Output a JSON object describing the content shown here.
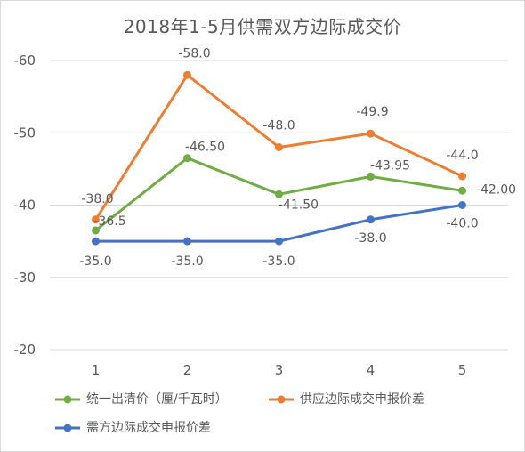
{
  "chart_data": {
    "type": "line",
    "title": "2018年1-5月供需双方边际成交价",
    "xlabel": "",
    "ylabel": "",
    "categories": [
      "1",
      "2",
      "3",
      "4",
      "5"
    ],
    "ylim": [
      -20,
      -60
    ],
    "yticks": [
      -60,
      -50,
      -40,
      -30,
      -20
    ],
    "ytick_labels": [
      "-60",
      "-50",
      "-40",
      "-30",
      "-20"
    ],
    "y_axis_reversed": true,
    "grid": "horizontal",
    "legend_position": "bottom",
    "series": [
      {
        "name": "统一出清价（厘/千瓦时）",
        "color": "#70ad47",
        "values": [
          -36.5,
          -46.5,
          -41.5,
          -43.95,
          -42.0
        ],
        "data_labels": [
          "-36.5",
          "-46.50",
          "-41.50",
          "-43.95",
          "-42.00"
        ]
      },
      {
        "name": "供应边际成交申报价差",
        "color": "#ed7d31",
        "values": [
          -38.0,
          -58.0,
          -48.0,
          -49.9,
          -44.0
        ],
        "data_labels": [
          "-38.0",
          "-58.0",
          "-48.0",
          "-49.9",
          "-44.0"
        ]
      },
      {
        "name": "需方边际成交申报价差",
        "color": "#4472c4",
        "values": [
          -35.0,
          -35.0,
          -35.0,
          -38.0,
          -40.0
        ],
        "data_labels": [
          "-35.0",
          "-35.0",
          "-35.0",
          "-38.0",
          "-40.0"
        ]
      }
    ]
  },
  "colors": {
    "axis_text": "#595959",
    "gridline": "#d9d9d9"
  }
}
